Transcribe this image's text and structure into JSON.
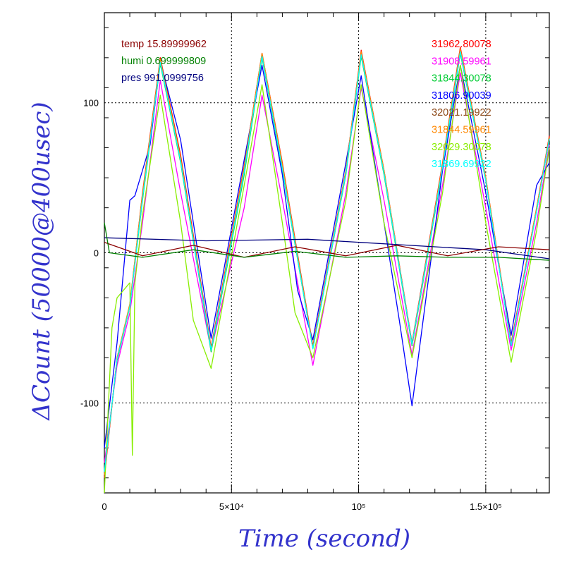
{
  "chart_data": {
    "type": "line",
    "title": "",
    "xlabel": "Time (second)",
    "ylabel": "ΔCount (50000@400usec)",
    "xlim": [
      0,
      175000
    ],
    "ylim": [
      -160,
      160
    ],
    "grid": true,
    "x_ticks": [
      {
        "value": 0,
        "label": "0"
      },
      {
        "value": 50000,
        "label": "5×10⁴"
      },
      {
        "value": 100000,
        "label": "10⁵"
      },
      {
        "value": 150000,
        "label": "1.5×10⁵"
      }
    ],
    "y_ticks": [
      {
        "value": -100,
        "label": "-100"
      },
      {
        "value": 0,
        "label": "0"
      },
      {
        "value": 100,
        "label": "100"
      }
    ],
    "env_legend": [
      {
        "label": "temp 15.89999962",
        "color": "#8b0000"
      },
      {
        "label": "humi 0.699999809",
        "color": "#008000"
      },
      {
        "label": "pres 991.0999756",
        "color": "#00007f"
      }
    ],
    "sensor_legend": [
      {
        "label": "31962.80078",
        "color": "#ff0000"
      },
      {
        "label": "31908.59961",
        "color": "#ff00ff"
      },
      {
        "label": "31844.30078",
        "color": "#00cc33"
      },
      {
        "label": "31806.90039",
        "color": "#0000ff"
      },
      {
        "label": "32021.19922",
        "color": "#8b4513"
      },
      {
        "label": "31844.59961",
        "color": "#ff8800"
      },
      {
        "label": "32029.30078",
        "color": "#88ee00"
      },
      {
        "label": "31869.69922",
        "color": "#00ffff"
      }
    ],
    "series": [
      {
        "color": "#ff0000",
        "x": [
          0,
          5000,
          10000,
          15000,
          22000,
          30000,
          42000,
          55000,
          62000,
          70000,
          82000,
          95000,
          101000,
          110000,
          121000,
          133000,
          140000,
          150000,
          160000,
          170000,
          175000
        ],
        "y": [
          -150,
          -70,
          -35,
          40,
          130,
          65,
          -63,
          58,
          133,
          60,
          -62,
          55,
          135,
          55,
          -60,
          60,
          137,
          50,
          -60,
          30,
          78
        ]
      },
      {
        "color": "#ff00ff",
        "x": [
          0,
          5000,
          10000,
          15000,
          22000,
          30000,
          42000,
          55000,
          62000,
          70000,
          82000,
          95000,
          101000,
          110000,
          121000,
          133000,
          140000,
          150000,
          160000,
          170000,
          175000
        ],
        "y": [
          -140,
          -75,
          -40,
          20,
          115,
          40,
          -65,
          30,
          105,
          35,
          -75,
          40,
          110,
          35,
          -68,
          45,
          120,
          30,
          -65,
          20,
          72
        ]
      },
      {
        "color": "#00cc33",
        "x": [
          0,
          5000,
          10000,
          15000,
          22000,
          30000,
          42000,
          55000,
          62000,
          70000,
          82000,
          95000,
          101000,
          110000,
          121000,
          133000,
          140000,
          150000,
          160000,
          170000,
          175000
        ],
        "y": [
          -145,
          -72,
          -36,
          35,
          126,
          60,
          -66,
          52,
          130,
          55,
          -64,
          52,
          131,
          52,
          -62,
          56,
          133,
          48,
          -62,
          28,
          76
        ]
      },
      {
        "color": "#0000ff",
        "x": [
          0,
          5000,
          10000,
          12000,
          15000,
          18000,
          22000,
          30000,
          42000,
          55000,
          62000,
          70000,
          76000,
          82000,
          95000,
          101000,
          110000,
          116000,
          121000,
          133000,
          140000,
          150000,
          160000,
          170000,
          175000
        ],
        "y": [
          -130,
          -60,
          35,
          38,
          55,
          72,
          128,
          75,
          -57,
          62,
          125,
          52,
          -25,
          -58,
          60,
          118,
          20,
          -45,
          -102,
          55,
          125,
          40,
          -55,
          45,
          60
        ]
      },
      {
        "color": "#8b4513",
        "x": [
          0,
          5000,
          10000,
          15000,
          22000,
          30000,
          42000,
          55000,
          62000,
          70000,
          82000,
          95000,
          101000,
          110000,
          121000,
          133000,
          140000,
          150000,
          160000,
          170000,
          175000
        ],
        "y": [
          -146,
          -71,
          -35,
          38,
          128,
          62,
          -64,
          56,
          132,
          58,
          -63,
          54,
          133,
          54,
          -61,
          58,
          135,
          49,
          -61,
          29,
          77
        ]
      },
      {
        "color": "#ff8800",
        "x": [
          0,
          5000,
          10000,
          15000,
          22000,
          30000,
          42000,
          55000,
          62000,
          70000,
          82000,
          95000,
          101000,
          110000,
          121000,
          133000,
          140000,
          150000,
          160000,
          170000,
          175000
        ],
        "y": [
          -148,
          -70,
          -34,
          39,
          129,
          63,
          -64,
          57,
          133,
          59,
          -63,
          55,
          134,
          55,
          -61,
          59,
          136,
          50,
          -61,
          30,
          77
        ]
      },
      {
        "color": "#88ee00",
        "x": [
          0,
          3000,
          5000,
          10000,
          11000,
          12000,
          15000,
          22000,
          30000,
          35000,
          42000,
          55000,
          62000,
          70000,
          75000,
          82000,
          95000,
          101000,
          110000,
          121000,
          133000,
          140000,
          150000,
          160000,
          170000,
          175000
        ],
        "y": [
          -160,
          -50,
          -30,
          -20,
          -135,
          -20,
          25,
          105,
          20,
          -45,
          -77,
          45,
          112,
          20,
          -40,
          -70,
          35,
          112,
          20,
          -70,
          40,
          125,
          20,
          -73,
          15,
          70
        ]
      },
      {
        "color": "#00ffff",
        "x": [
          0,
          5000,
          10000,
          15000,
          22000,
          30000,
          42000,
          55000,
          62000,
          70000,
          82000,
          95000,
          101000,
          110000,
          121000,
          133000,
          140000,
          150000,
          160000,
          170000,
          175000
        ],
        "y": [
          -146,
          -71,
          -36,
          36,
          127,
          61,
          -65,
          54,
          131,
          56,
          -64,
          53,
          132,
          53,
          -61,
          57,
          134,
          48,
          -62,
          28,
          76
        ]
      },
      {
        "color": "#00007f",
        "x": [
          0,
          40000,
          80000,
          120000,
          150000,
          175000
        ],
        "y": [
          10,
          8,
          9,
          5,
          2,
          -4
        ]
      },
      {
        "color": "#8b0000",
        "x": [
          0,
          15000,
          35000,
          55000,
          75000,
          95000,
          115000,
          135000,
          155000,
          175000
        ],
        "y": [
          7,
          -2,
          5,
          -3,
          4,
          -2,
          5,
          -2,
          4,
          2
        ]
      },
      {
        "color": "#008000",
        "x": [
          0,
          2000,
          15000,
          35000,
          55000,
          75000,
          95000,
          115000,
          135000,
          155000,
          175000
        ],
        "y": [
          20,
          0,
          -3,
          2,
          -3,
          1,
          -3,
          -2,
          -3,
          -3,
          -5
        ]
      }
    ]
  }
}
